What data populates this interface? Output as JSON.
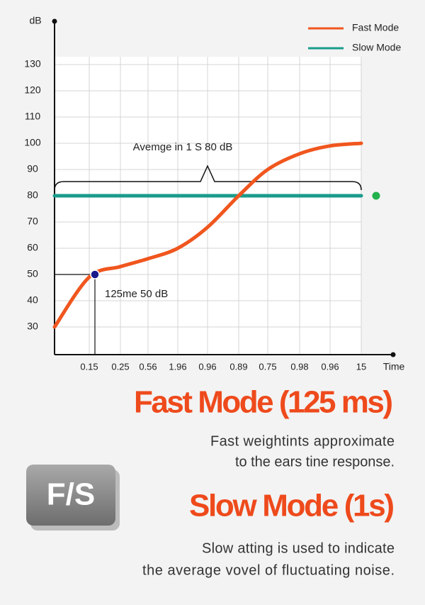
{
  "chart_data": {
    "type": "line",
    "y_label": "dB",
    "x_label": "Time",
    "categories": [
      null,
      "0.15",
      "0.25",
      "0.56",
      "1.96",
      "0.96",
      "0.89",
      "0.75",
      "0.98",
      "0.96",
      "15"
    ],
    "series": [
      {
        "name": "Fast Mode",
        "color": "#f0561e",
        "values": [
          30,
          49,
          53,
          56,
          60,
          68,
          80,
          90,
          96,
          99,
          100
        ]
      },
      {
        "name": "Slow Mode",
        "color": "#1a9c8c",
        "values": [
          80,
          80,
          80,
          80,
          80,
          80,
          80,
          80,
          80,
          80,
          80
        ]
      }
    ],
    "ylim": [
      20,
      145
    ],
    "yticks": [
      30,
      40,
      50,
      60,
      70,
      80,
      90,
      100,
      110,
      120,
      130
    ],
    "grid": true,
    "legend": "top-right",
    "annotations": [
      {
        "text": "Avemge in 1 S  80 dB",
        "value": 80
      },
      {
        "text": "125me  50 dB",
        "value": 50
      }
    ]
  },
  "sections": [
    {
      "title": "Fast Mode (125 ms)",
      "lines": [
        "Fast weightints approximate",
        "to the ears tine response."
      ]
    },
    {
      "title": "Slow Mode (1s)",
      "lines": [
        "Slow atting is used to indicate",
        "the average vovel of fluctuating noise."
      ]
    }
  ],
  "button": {
    "label": "F/S"
  }
}
